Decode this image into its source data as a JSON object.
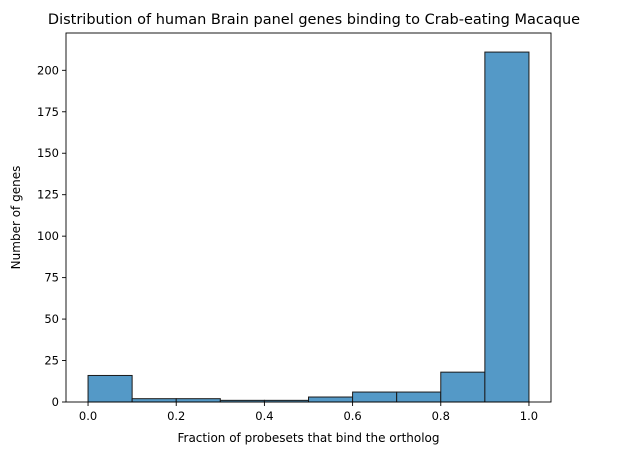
{
  "chart_data": {
    "type": "bar",
    "title": "Distribution of human Brain panel genes binding to Crab-eating Macaque",
    "xlabel": "Fraction of probesets that bind the ortholog",
    "ylabel": "Number of genes",
    "bins": [
      {
        "start": 0.0,
        "end": 0.1,
        "count": 16
      },
      {
        "start": 0.1,
        "end": 0.2,
        "count": 2
      },
      {
        "start": 0.2,
        "end": 0.3,
        "count": 2
      },
      {
        "start": 0.3,
        "end": 0.4,
        "count": 1
      },
      {
        "start": 0.4,
        "end": 0.5,
        "count": 1
      },
      {
        "start": 0.5,
        "end": 0.6,
        "count": 3
      },
      {
        "start": 0.6,
        "end": 0.7,
        "count": 6
      },
      {
        "start": 0.7,
        "end": 0.8,
        "count": 6
      },
      {
        "start": 0.8,
        "end": 0.9,
        "count": 18
      },
      {
        "start": 0.9,
        "end": 1.0,
        "count": 211
      }
    ],
    "xlim": [
      -0.05,
      1.05
    ],
    "ylim": [
      0,
      222.5
    ],
    "xticks": [
      0.0,
      0.2,
      0.4,
      0.6,
      0.8,
      1.0
    ],
    "xtick_labels": [
      "0.0",
      "0.2",
      "0.4",
      "0.6",
      "0.8",
      "1.0"
    ],
    "yticks": [
      0,
      25,
      50,
      75,
      100,
      125,
      150,
      175,
      200
    ],
    "ytick_labels": [
      "0",
      "25",
      "50",
      "75",
      "100",
      "125",
      "150",
      "175",
      "200"
    ],
    "bar_color": "#5499c7",
    "edge_color": "#1a1a1a",
    "grid": false,
    "legend": "none"
  }
}
